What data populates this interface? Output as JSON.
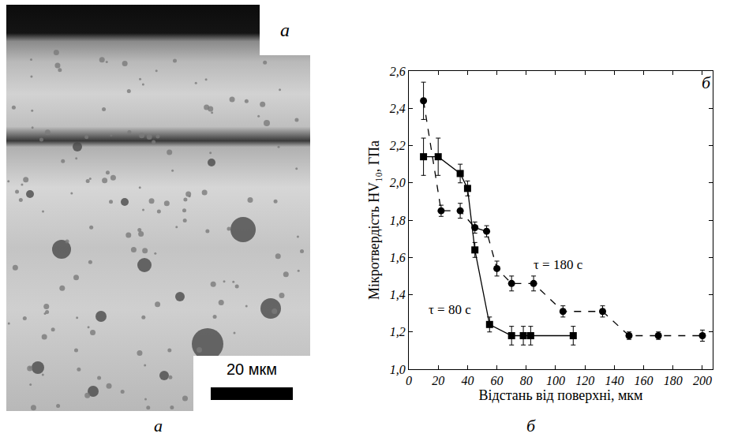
{
  "photo": {
    "letter": "а",
    "scale_bar": "20 мкм",
    "caption": "а"
  },
  "chart_data": {
    "type": "scatter",
    "letter": "б",
    "caption": "б",
    "x_label": "Відстань від поверхні, мкм",
    "y_label": "Мікротвердість HV₁₀, ГПа",
    "xlim": [
      0,
      207
    ],
    "xticks": [
      0,
      20,
      40,
      60,
      80,
      100,
      120,
      140,
      160,
      180,
      200
    ],
    "ylim": [
      1.0,
      2.6
    ],
    "yticks": [
      {
        "value": 1.0,
        "label": "1,0"
      },
      {
        "value": 1.2,
        "label": "1,2"
      },
      {
        "value": 1.4,
        "label": "1,4"
      },
      {
        "value": 1.6,
        "label": "1,6"
      },
      {
        "value": 1.8,
        "label": "1,8"
      },
      {
        "value": 2.0,
        "label": "2,0"
      },
      {
        "value": 2.2,
        "label": "2,2"
      },
      {
        "value": 2.4,
        "label": "2,4"
      },
      {
        "value": 2.6,
        "label": "2,6"
      }
    ],
    "grid": false,
    "series": [
      {
        "name": "τ = 80 с",
        "color": "#000000",
        "marker": "square",
        "line_style": "solid",
        "x": [
          10,
          20,
          35,
          40,
          45,
          55,
          70,
          78,
          83,
          112
        ],
        "values": [
          2.14,
          2.14,
          2.05,
          1.97,
          1.64,
          1.24,
          1.18,
          1.18,
          1.18,
          1.18
        ],
        "errors": [
          0.1,
          0.1,
          0.05,
          0.04,
          0.04,
          0.04,
          0.05,
          0.05,
          0.05,
          0.05
        ]
      },
      {
        "name": "τ = 180 с",
        "color": "#000000",
        "marker": "circle",
        "line_style": "dash",
        "x": [
          10,
          22,
          35,
          45,
          53,
          60,
          70,
          85,
          105,
          132,
          150,
          170,
          200
        ],
        "values": [
          2.44,
          1.85,
          1.85,
          1.76,
          1.74,
          1.54,
          1.46,
          1.46,
          1.31,
          1.31,
          1.18,
          1.18,
          1.18
        ],
        "errors": [
          0.1,
          0.03,
          0.04,
          0.03,
          0.03,
          0.04,
          0.04,
          0.04,
          0.03,
          0.03,
          0.02,
          0.02,
          0.03
        ]
      }
    ],
    "annotations": [
      {
        "text": "τ = 180 с",
        "x": 102,
        "y": 1.56
      },
      {
        "text": "τ = 80 с",
        "x": 28,
        "y": 1.32
      }
    ]
  }
}
